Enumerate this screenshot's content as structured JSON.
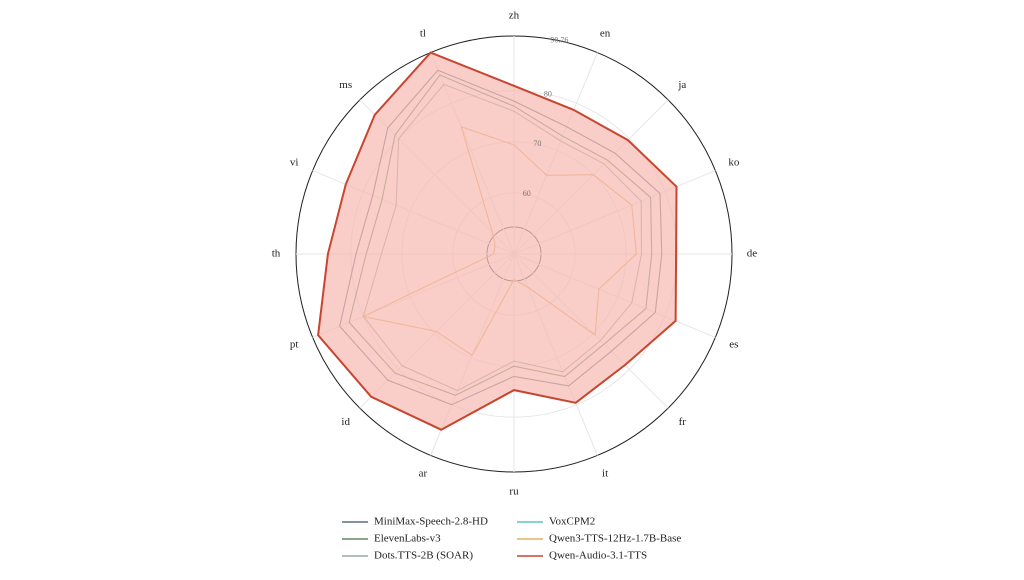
{
  "chart_data": {
    "type": "radar",
    "categories": [
      "zh",
      "en",
      "ja",
      "ko",
      "de",
      "es",
      "fr",
      "it",
      "ru",
      "ar",
      "id",
      "pt",
      "th",
      "vi",
      "ms",
      "tl"
    ],
    "rlim": [
      48,
      90.76
    ],
    "rticks": [
      60,
      70,
      80,
      90.76
    ],
    "grid": true,
    "legend": "bottom",
    "series": [
      {
        "name": "MiniMax-Speech-2.8-HD",
        "color": "#5f6d80",
        "values": [
          78,
          75,
          76,
          79,
          77,
          78,
          75,
          76,
          72,
          80,
          83,
          85,
          79,
          78,
          83,
          87
        ]
      },
      {
        "name": "ElevenLabs-v3",
        "color": "#5e8c62",
        "values": [
          77,
          73,
          74,
          77,
          75,
          76,
          73,
          74,
          70,
          78,
          81,
          83,
          77,
          76,
          81,
          86
        ]
      },
      {
        "name": "Dots.TTS-2B (SOAR)",
        "color": "#9ea8a3",
        "values": [
          76,
          72,
          73,
          75,
          73,
          73,
          72,
          73,
          69,
          77,
          79,
          80,
          74,
          73,
          80,
          84
        ]
      },
      {
        "name": "VoxCPM2",
        "color": "#5cc7c0",
        "values": [
          null,
          null,
          null,
          null,
          null,
          null,
          null,
          null,
          null,
          null,
          null,
          null,
          null,
          null,
          null,
          null
        ]
      },
      {
        "name": "Qwen3-TTS-12Hz-1.7B-Base",
        "color": "#e2b262",
        "values": [
          69.4,
          64.7,
          70,
          73,
          72,
          66,
          70.5,
          55,
          53,
          69.5,
          69.5,
          80,
          52,
          52,
          54,
          75
        ]
      },
      {
        "name": "Qwen-Audio-3.1-TTS",
        "color": "#c8452f",
        "fill": "#f6b9b1",
        "values": [
          81,
          78.6,
          79.6,
          82.5,
          79.8,
          82.3,
          78.8,
          79.6,
          74.7,
          85.3,
          87.6,
          89.6,
          84.5,
          83.7,
          86.6,
          90.76
        ]
      }
    ]
  }
}
